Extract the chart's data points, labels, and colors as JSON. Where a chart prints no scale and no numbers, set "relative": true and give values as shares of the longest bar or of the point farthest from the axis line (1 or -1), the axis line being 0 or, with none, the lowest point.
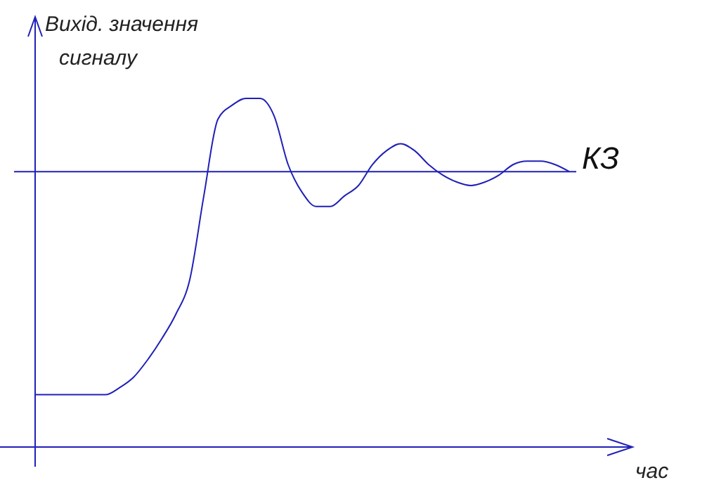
{
  "chart_data": {
    "type": "line",
    "relative": true,
    "xlabel": "час",
    "ylabel": "Вихід. значення сигналу",
    "categories": [
      null,
      null,
      null,
      null,
      null,
      null,
      null,
      null,
      null,
      null,
      null,
      null,
      null,
      null,
      null,
      null,
      null,
      null,
      null,
      null,
      null,
      null,
      null,
      null,
      null,
      null,
      null,
      null,
      null,
      null,
      null,
      null,
      null,
      null,
      null,
      null,
      null,
      null,
      null
    ],
    "series": [
      {
        "color": "#2020b8",
        "values": [
          0.15,
          0.15,
          0.15,
          0.15,
          0.15,
          0.15,
          0.17,
          0.2,
          0.25,
          0.31,
          0.38,
          0.48,
          0.72,
          0.94,
          0.98,
          1,
          1,
          0.95,
          0.81,
          0.73,
          0.69,
          0.69,
          0.72,
          0.75,
          0.81,
          0.85,
          0.87,
          0.85,
          0.81,
          0.78,
          0.76,
          0.75,
          0.76,
          0.78,
          0.81,
          0.82,
          0.82,
          0.81,
          0.79
        ]
      }
    ],
    "ref_lines": [
      {
        "axis": "y",
        "value": 0.79,
        "label": "КЗ",
        "color": "#2020b8"
      }
    ],
    "marker": "none",
    "line_style": "solid"
  }
}
